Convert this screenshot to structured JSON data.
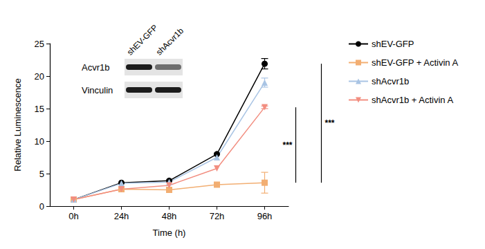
{
  "chart_data": {
    "type": "line",
    "x_label": "Time (h)",
    "y_label": "Relative Luminescence",
    "categories": [
      "0h",
      "24h",
      "48h",
      "72h",
      "96h"
    ],
    "ylim": [
      0,
      25
    ],
    "yticks": [
      0,
      5,
      10,
      15,
      20,
      25
    ],
    "grid": false,
    "legend": "right",
    "series": [
      {
        "name": "shEV-GFP",
        "color": "#000000",
        "marker": "circle",
        "values": [
          1.0,
          3.6,
          3.9,
          8.0,
          21.9
        ],
        "errors": [
          null,
          null,
          null,
          null,
          0.8
        ]
      },
      {
        "name": "shEV-GFP + Activin A",
        "color": "#f2ae72",
        "marker": "square",
        "values": [
          1.0,
          2.6,
          2.5,
          3.3,
          3.6
        ],
        "errors": [
          null,
          null,
          null,
          null,
          1.6
        ]
      },
      {
        "name": "shAcvr1b",
        "color": "#a9c4e4",
        "marker": "triangle",
        "values": [
          1.0,
          3.5,
          3.7,
          7.5,
          19.0
        ],
        "errors": [
          null,
          null,
          null,
          null,
          0.7
        ]
      },
      {
        "name": "shAcvr1b + Activin A",
        "color": "#f28e80",
        "marker": "triangle-down",
        "values": [
          1.0,
          2.6,
          3.2,
          5.8,
          15.2
        ],
        "errors": [
          null,
          null,
          null,
          null,
          0.2
        ]
      }
    ],
    "annotations": [
      {
        "text": "***",
        "y_range": [
          3.6,
          15.2
        ]
      },
      {
        "text": "***",
        "y_range": [
          3.6,
          21.9
        ]
      }
    ],
    "inset": {
      "type": "western blot",
      "columns": [
        "shEV-GFP",
        "shAcvr1b"
      ],
      "rows": [
        "Acvr1b",
        "Vinculin"
      ]
    }
  }
}
